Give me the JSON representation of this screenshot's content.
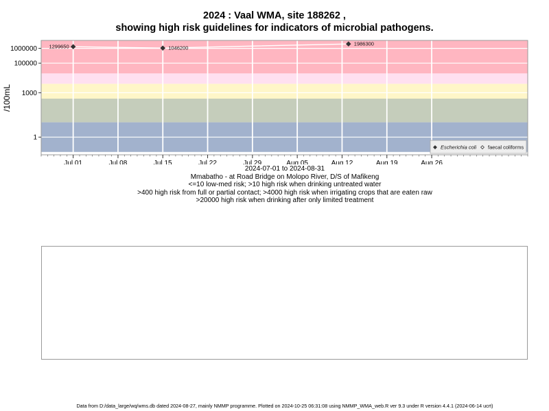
{
  "chart_data": {
    "type": "scatter",
    "title": "2024 : Vaal WMA, site 188262 ,",
    "subtitle": "showing high risk guidelines for indicators of microbial pathogens.",
    "ylabel": "/100mL",
    "yscale": "log",
    "yticks": [
      {
        "value": 1,
        "label": "1"
      },
      {
        "value": 1000,
        "label": "1000"
      },
      {
        "value": 100000,
        "label": "100000"
      },
      {
        "value": 1000000,
        "label": "1000000"
      }
    ],
    "xlim": [
      "2024-06-26",
      "2024-09-10"
    ],
    "xticks": [
      {
        "date": "2024-07-01",
        "label": "Jul 01"
      },
      {
        "date": "2024-07-08",
        "label": "Jul 08"
      },
      {
        "date": "2024-07-15",
        "label": "Jul 15"
      },
      {
        "date": "2024-07-22",
        "label": "Jul 22"
      },
      {
        "date": "2024-07-29",
        "label": "Jul 29"
      },
      {
        "date": "2024-08-05",
        "label": "Aug 05"
      },
      {
        "date": "2024-08-12",
        "label": "Aug 12"
      },
      {
        "date": "2024-08-19",
        "label": "Aug 19"
      },
      {
        "date": "2024-08-26",
        "label": "Aug 26"
      }
    ],
    "risk_bands": [
      {
        "from": 20000,
        "to": 100000000.0,
        "color": "#ffb6c1"
      },
      {
        "from": 4000,
        "to": 20000,
        "color": "#ffe0f0"
      },
      {
        "from": 400,
        "to": 4000,
        "color": "#fff6c8"
      },
      {
        "from": 10,
        "to": 400,
        "color": "#c5cdbb"
      },
      {
        "from": 0.1,
        "to": 10,
        "color": "#a2b2cd"
      }
    ],
    "series": [
      {
        "name": "Escherichia coli",
        "marker": "filled-diamond",
        "color": "#333333",
        "points": [
          {
            "date": "2024-07-01",
            "value": 1299650,
            "label": "1299650"
          },
          {
            "date": "2024-07-15",
            "value": 1046200,
            "label": "1046200"
          },
          {
            "date": "2024-08-13",
            "value": 1986300,
            "label": "1986300"
          }
        ]
      },
      {
        "name": "faecal coliforms",
        "marker": "open-diamond",
        "color": "#333333",
        "points": []
      }
    ],
    "legend_position": "bottom-right",
    "grid": true
  },
  "date_range": "2024-07-01 to 2024-08-31",
  "site_description": "Mmabatho - at Road Bridge on Molopo River, D/S of Mafikeng",
  "guidelines": [
    "<=10 low-med risk; >10 high risk when drinking untreated water",
    ">400 high risk from full or partial contact; >4000 high risk when irrigating crops that are eaten raw",
    ">20000 high risk when drinking after only limited treatment"
  ],
  "footer": "Data from D:/data_large/wq/wms.db dated 2024-08-27, mainly NMMP programme. Plotted on 2024-10-25 06:31:08 using NMMP_WMA_web.R ver 9.3 under R version 4.4.1 (2024-06-14 ucrt)"
}
